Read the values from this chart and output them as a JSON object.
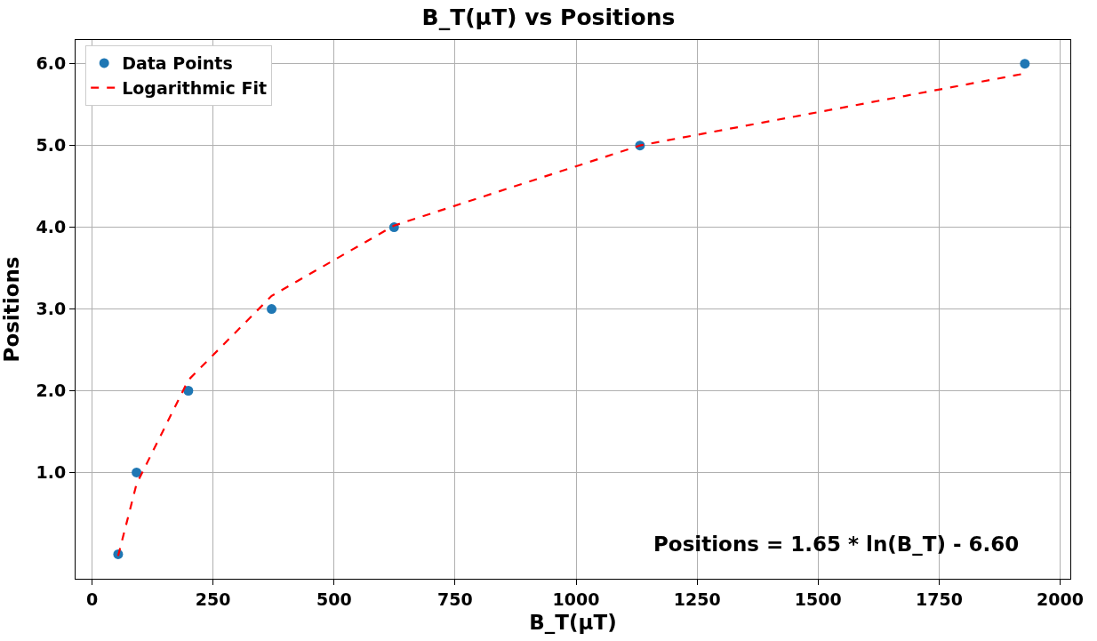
{
  "chart_data": {
    "type": "scatter",
    "title": "B_T(μT) vs Positions",
    "xlabel": "B_T(μT)",
    "ylabel": "Positions",
    "series": [
      {
        "name": "Data Points",
        "color": "#1f77b4",
        "marker": "circle",
        "x": [
          54,
          92,
          199,
          371,
          624,
          1132,
          1927
        ],
        "values": [
          0,
          1,
          2,
          3,
          4,
          5,
          6
        ]
      },
      {
        "name": "Logarithmic Fit",
        "type": "line",
        "color": "#ff0000",
        "line_style": "dashed",
        "marker": "none",
        "x": [
          54,
          92,
          199,
          371,
          624,
          1132,
          1927
        ],
        "values": [
          -0.02,
          0.86,
          2.13,
          3.16,
          4.02,
          5.0,
          5.88
        ]
      }
    ],
    "xlim": [
      -34,
      2021
    ],
    "ylim": [
      -0.3,
      6.29
    ],
    "xticks": [
      0,
      250,
      500,
      750,
      1000,
      1250,
      1500,
      1750,
      2000
    ],
    "yticks": [
      {
        "value": 1,
        "label": "1.0"
      },
      {
        "value": 2,
        "label": "2.0"
      },
      {
        "value": 3,
        "label": "3.0"
      },
      {
        "value": 4,
        "label": "4.0"
      },
      {
        "value": 5,
        "label": "5.0"
      },
      {
        "value": 6,
        "label": "6.0"
      }
    ],
    "grid": true,
    "legend": "top left",
    "annotations": [
      "Positions = 1.65 * ln(B_T) - 6.60"
    ]
  }
}
